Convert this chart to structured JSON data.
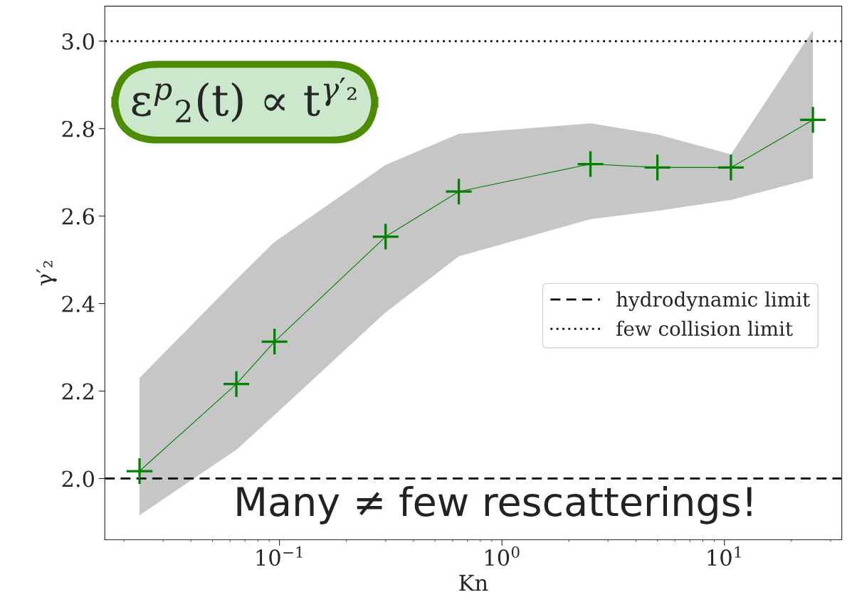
{
  "chart_data": {
    "type": "line",
    "xlabel": "Kn",
    "ylabel": "γ′₂",
    "x": [
      0.0235,
      0.064,
      0.095,
      0.3,
      0.64,
      2.5,
      5,
      10.7,
      25
    ],
    "series": [
      {
        "color": "#008000",
        "values": [
          2.017,
          2.216,
          2.313,
          2.553,
          2.656,
          2.719,
          2.711,
          2.711,
          2.82
        ],
        "lower": [
          1.916,
          2.066,
          2.145,
          2.38,
          2.508,
          2.593,
          2.612,
          2.637,
          2.686
        ],
        "upper": [
          2.23,
          2.455,
          2.541,
          2.717,
          2.788,
          2.812,
          2.787,
          2.741,
          3.025
        ]
      }
    ],
    "marker": "cross",
    "log": "x",
    "xlim": [
      0.0164,
      33.7
    ],
    "xticks": [
      {
        "value": 0.1,
        "label": "10$^{−1}$"
      },
      {
        "value": 1,
        "label": "10$^{0}$"
      },
      {
        "value": 10,
        "label": "10$^{1}$"
      }
    ],
    "ylim": [
      1.86,
      3.08
    ],
    "yticks": [
      {
        "value": 2.0,
        "label": "2.0"
      },
      {
        "value": 2.2,
        "label": "2.2"
      },
      {
        "value": 2.4,
        "label": "2.4"
      },
      {
        "value": 2.6,
        "label": "2.6"
      },
      {
        "value": 2.8,
        "label": "2.8"
      },
      {
        "value": 3.0,
        "label": "3.0"
      }
    ],
    "ref_lines": [
      {
        "axis": "y",
        "value": 2.0,
        "label": "hydrodynamic limit",
        "line_style": "dashed",
        "color": "#000000"
      },
      {
        "axis": "y",
        "value": 3.0,
        "label": "few collision limit",
        "line_style": "dotted",
        "color": "#000000"
      }
    ],
    "legend": "right",
    "grid": false,
    "annotations": [
      "ε$^{p}$$_{2}$(t) ∝ t$^{γ′₂}$",
      "Many ≠ few rescatterings!"
    ]
  }
}
